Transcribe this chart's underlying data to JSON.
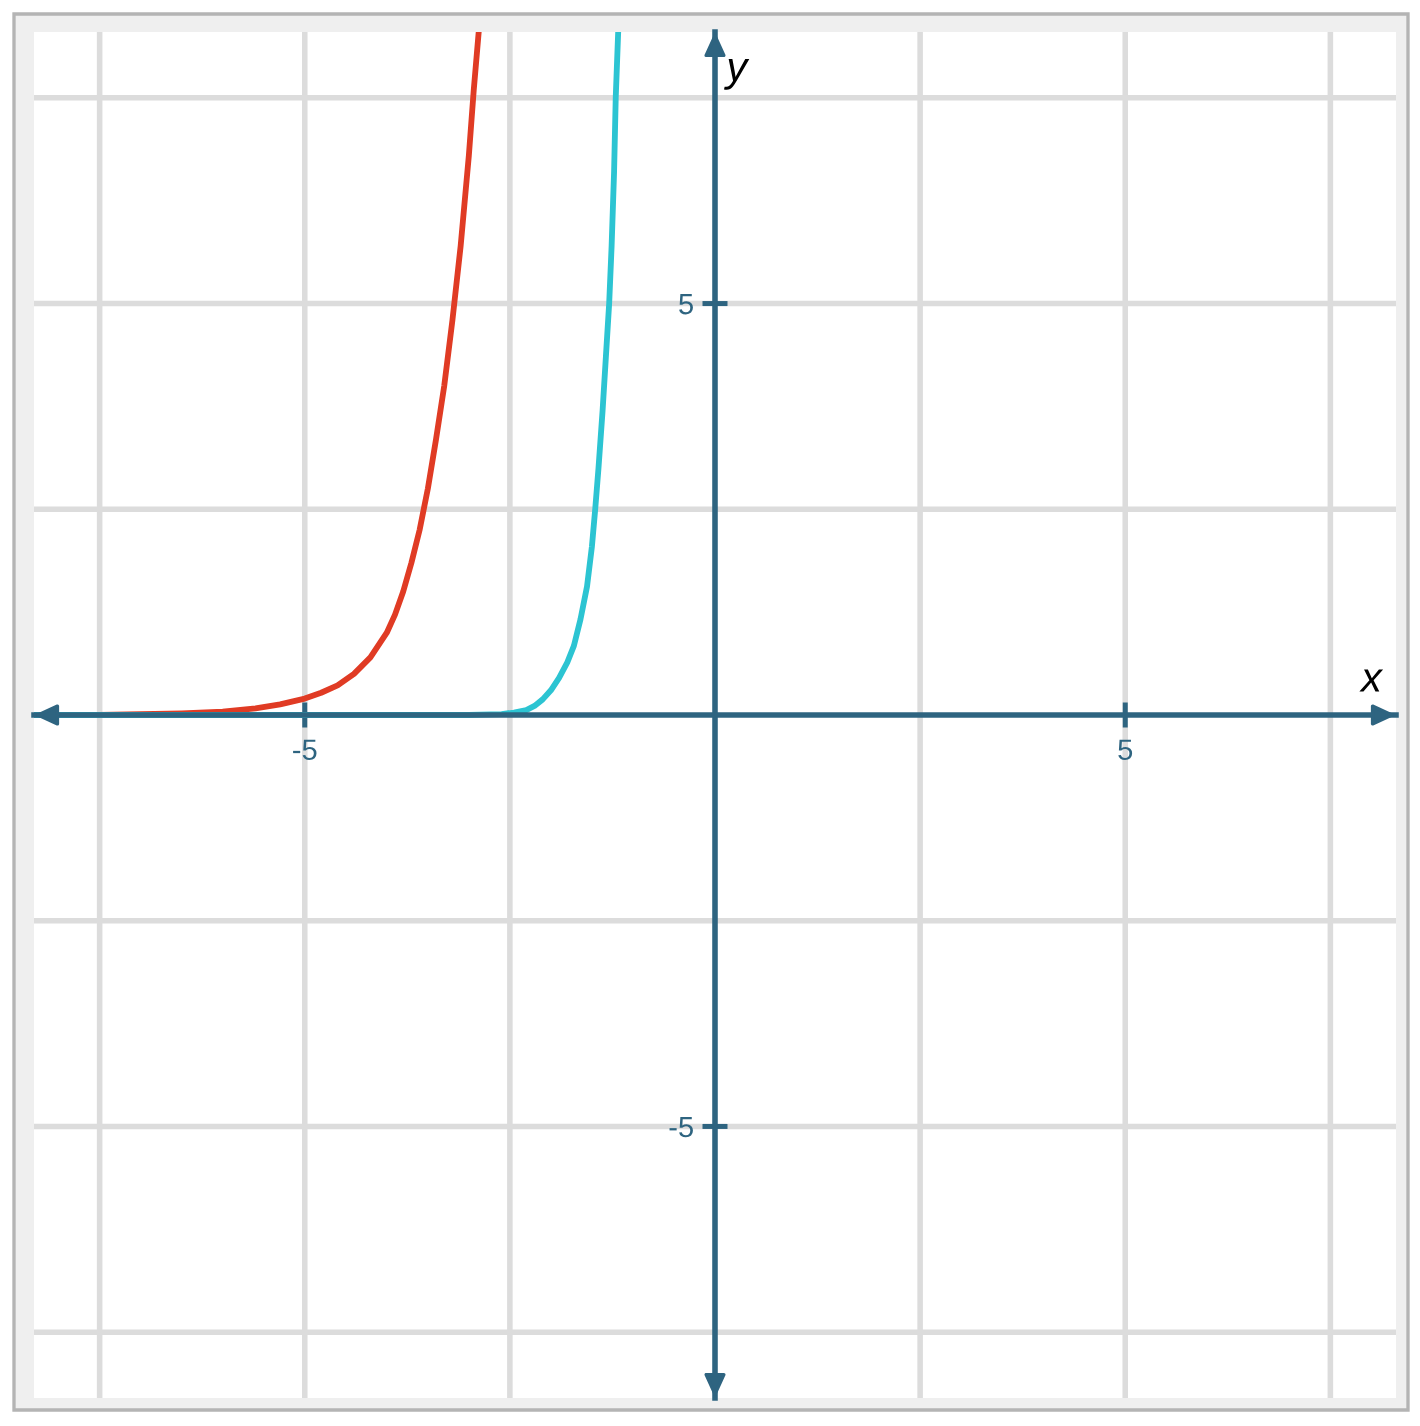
{
  "chart_data": {
    "type": "line",
    "xlabel": "x",
    "ylabel": "y",
    "xlim": [
      -8.3,
      8.3
    ],
    "ylim": [
      -8.3,
      8.3
    ],
    "xticks": [
      {
        "value": -7.5,
        "label": null
      },
      -5,
      {
        "value": -2.5,
        "label": null
      },
      {
        "value": 2.5,
        "label": null
      },
      5,
      {
        "value": 7.5,
        "label": null
      }
    ],
    "yticks": [
      {
        "value": -7.5,
        "label": null
      },
      -5,
      {
        "value": -2.5,
        "label": null
      },
      {
        "value": 2.5,
        "label": null
      },
      5,
      {
        "value": 7.5,
        "label": null
      }
    ],
    "grid": true,
    "line_style": "solid",
    "series": [
      {
        "color": "#e03b24",
        "x": [
          -8.3,
          -7.5,
          -7.0,
          -6.5,
          -6.0,
          -5.6,
          -5.3,
          -5.0,
          -4.8,
          -4.6,
          -4.4,
          -4.2,
          -4.0,
          -3.9,
          -3.8,
          -3.7,
          -3.6,
          -3.5,
          -3.4,
          -3.3,
          -3.2,
          -3.1,
          -3.0,
          -2.94,
          -2.88
        ],
        "values": [
          0,
          0,
          0.01,
          0.02,
          0.04,
          0.08,
          0.13,
          0.2,
          0.27,
          0.36,
          0.5,
          0.7,
          1.0,
          1.22,
          1.5,
          1.85,
          2.25,
          2.75,
          3.35,
          4.0,
          4.8,
          5.7,
          6.8,
          7.6,
          8.3
        ]
      },
      {
        "color": "#2cc4d2",
        "x": [
          -8.3,
          -3.0,
          -2.6,
          -2.45,
          -2.3,
          -2.2,
          -2.1,
          -2.0,
          -1.9,
          -1.8,
          -1.72,
          -1.64,
          -1.56,
          -1.5,
          -1.46,
          -1.42,
          -1.37,
          -1.33,
          -1.29,
          -1.26,
          -1.23,
          -1.21,
          -1.18
        ],
        "values": [
          0,
          0,
          0.01,
          0.03,
          0.06,
          0.11,
          0.19,
          0.3,
          0.45,
          0.64,
          0.84,
          1.16,
          1.56,
          2.05,
          2.5,
          3.0,
          3.7,
          4.35,
          5.0,
          5.7,
          6.6,
          7.5,
          8.3
        ]
      }
    ]
  }
}
